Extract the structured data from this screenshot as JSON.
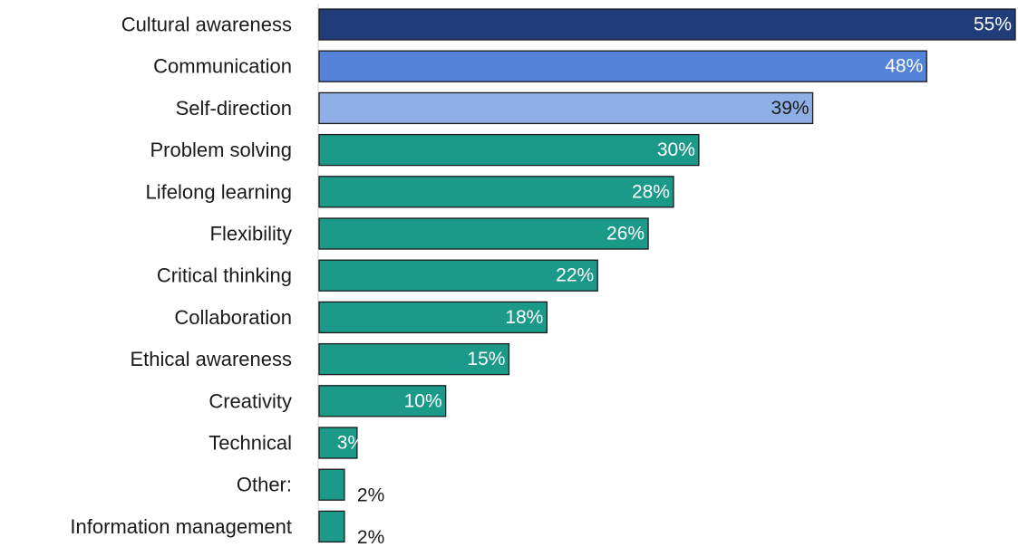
{
  "chart_data": {
    "type": "bar",
    "orientation": "horizontal",
    "categories": [
      "Cultural awareness",
      "Communication",
      "Self-direction",
      "Problem solving",
      "Lifelong learning",
      "Flexibility",
      "Critical thinking",
      "Collaboration",
      "Ethical awareness",
      "Creativity",
      "Technical",
      "Other:",
      "Information management"
    ],
    "values": [
      55,
      48,
      39,
      30,
      28,
      26,
      22,
      18,
      15,
      10,
      3,
      2,
      2
    ],
    "value_labels": [
      "55%",
      "48%",
      "39%",
      "30%",
      "28%",
      "26%",
      "22%",
      "18%",
      "15%",
      "10%",
      "3%",
      "2%",
      "2%"
    ],
    "bar_colors": [
      "#203d79",
      "#5483d9",
      "#8eaee6",
      "#1b9a8a",
      "#1b9a8a",
      "#1b9a8a",
      "#1b9a8a",
      "#1b9a8a",
      "#1b9a8a",
      "#1b9a8a",
      "#1b9a8a",
      "#1b9a8a",
      "#1b9a8a"
    ],
    "label_colors": [
      "#ffffff",
      "#ffffff",
      "#1a1a1a",
      "#ffffff",
      "#ffffff",
      "#ffffff",
      "#ffffff",
      "#ffffff",
      "#ffffff",
      "#ffffff",
      "#ffffff",
      "#1a1a1a",
      "#1a1a1a"
    ],
    "label_outside": [
      false,
      false,
      false,
      false,
      false,
      false,
      false,
      false,
      false,
      false,
      false,
      true,
      true
    ],
    "xlim": [
      0,
      55
    ],
    "title": "",
    "xlabel": "",
    "ylabel": "",
    "grid": false,
    "legend": "none"
  }
}
